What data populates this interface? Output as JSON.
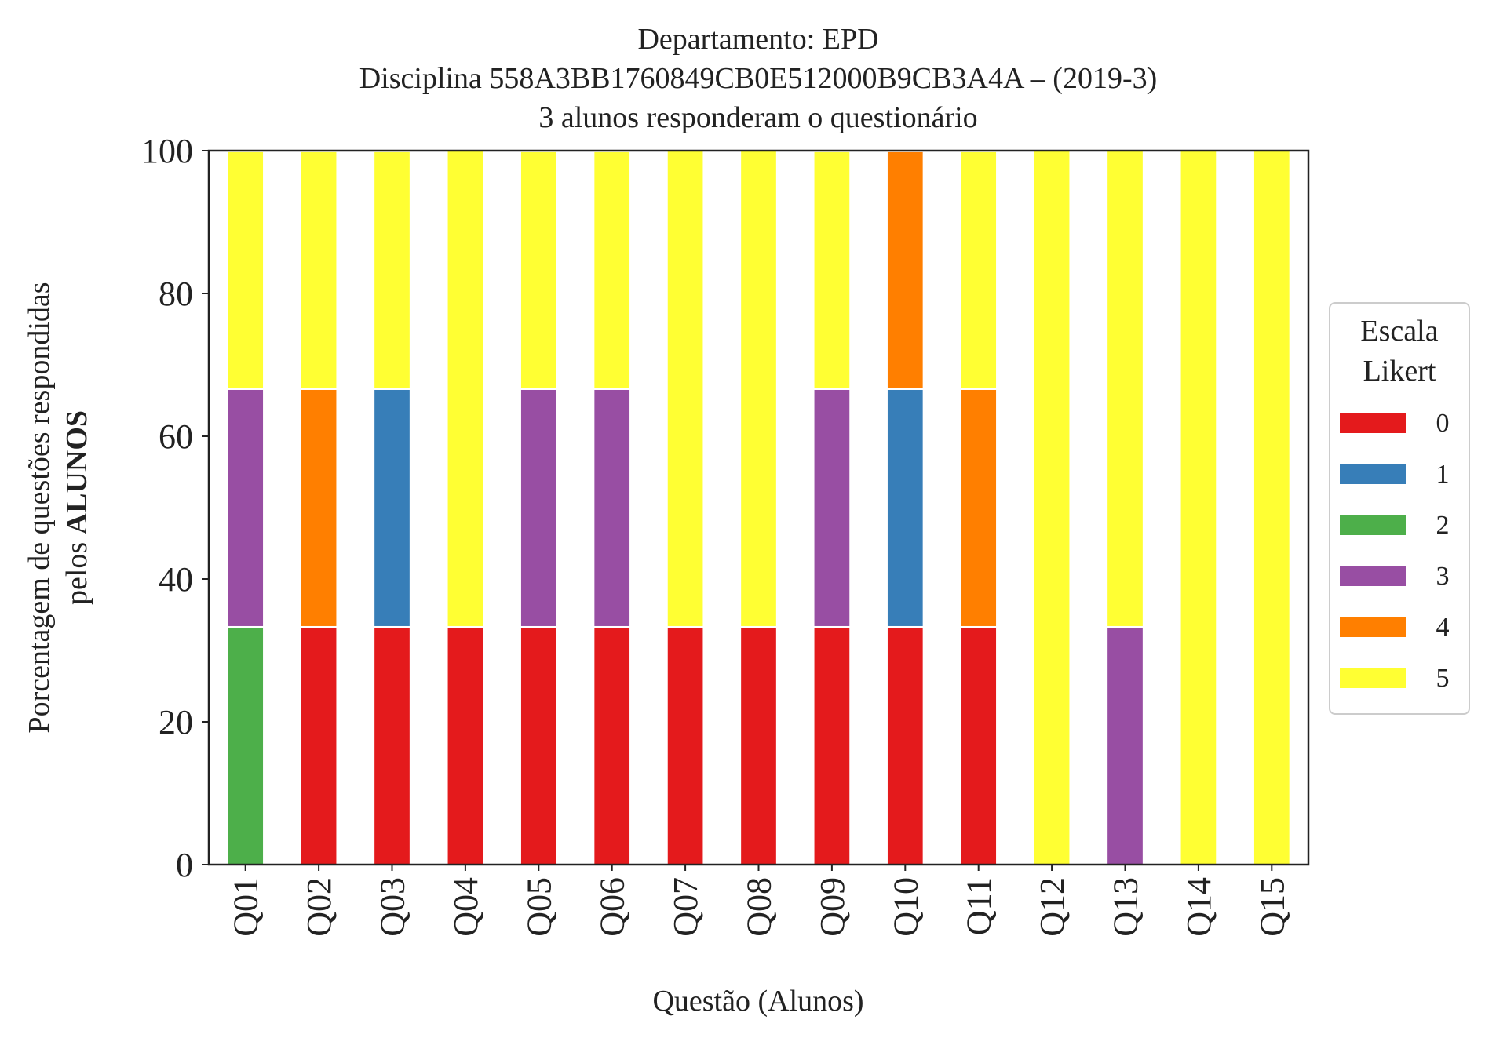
{
  "chart_data": {
    "type": "bar",
    "stacked": true,
    "title_lines": [
      "Departamento: EPD",
      "Disciplina 558A3BB1760849CB0E512000B9CB3A4A – (2019-3)",
      "3 alunos responderam o questionário"
    ],
    "xlabel": "Questão (Alunos)",
    "ylabel_line1": "Porcentagem de questões respondidas",
    "ylabel_line2_prefix": "pelos ",
    "ylabel_line2_bold": "ALUNOS",
    "ylim": [
      0,
      100
    ],
    "yticks": [
      0,
      20,
      40,
      60,
      80,
      100
    ],
    "categories": [
      "Q01",
      "Q02",
      "Q03",
      "Q04",
      "Q05",
      "Q06",
      "Q07",
      "Q08",
      "Q09",
      "Q10",
      "Q11",
      "Q12",
      "Q13",
      "Q14",
      "Q15"
    ],
    "legend": {
      "title_lines": [
        "Escala",
        "Likert"
      ],
      "placement": "center-right outside"
    },
    "series": [
      {
        "name": "0",
        "color": "#e41a1c",
        "values": [
          0,
          33.3,
          33.3,
          33.3,
          33.3,
          33.3,
          33.3,
          33.3,
          33.3,
          33.3,
          33.3,
          0,
          0,
          0,
          0
        ]
      },
      {
        "name": "1",
        "color": "#377eb8",
        "values": [
          0,
          0,
          33.3,
          0,
          0,
          0,
          0,
          0,
          0,
          33.3,
          0,
          0,
          0,
          0,
          0
        ]
      },
      {
        "name": "2",
        "color": "#4daf4a",
        "values": [
          33.3,
          0,
          0,
          0,
          0,
          0,
          0,
          0,
          0,
          0,
          0,
          0,
          0,
          0,
          0
        ]
      },
      {
        "name": "3",
        "color": "#984ea3",
        "values": [
          33.3,
          0,
          0,
          0,
          33.3,
          33.3,
          0,
          0,
          33.3,
          0,
          0,
          0,
          33.3,
          0,
          0
        ]
      },
      {
        "name": "4",
        "color": "#ff7f00",
        "values": [
          0,
          33.3,
          0,
          0,
          0,
          0,
          0,
          0,
          0,
          33.3,
          33.3,
          0,
          0,
          0,
          0
        ]
      },
      {
        "name": "5",
        "color": "#ffff33",
        "values": [
          33.3,
          33.3,
          33.3,
          66.7,
          33.3,
          33.3,
          66.7,
          66.7,
          33.3,
          0,
          33.3,
          100,
          66.7,
          100,
          100
        ]
      }
    ]
  }
}
